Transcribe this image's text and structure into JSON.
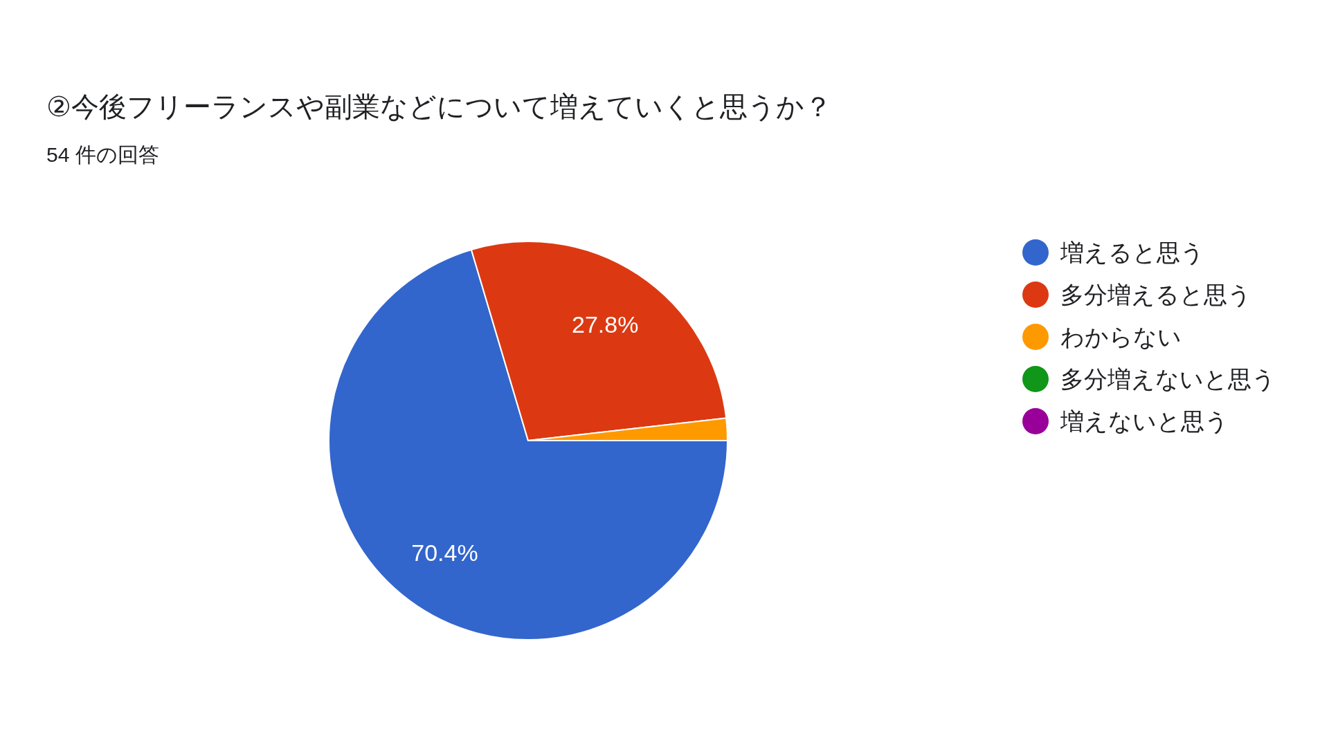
{
  "chart_data": {
    "type": "pie",
    "title": "②今後フリーランスや副業などについて増えていくと思うか？",
    "subtitle": "54 件の回答",
    "categories": [
      "増えると思う",
      "多分増えると思う",
      "わからない",
      "多分増えないと思う",
      "増えないと思う"
    ],
    "values": [
      70.4,
      27.8,
      1.8,
      0,
      0
    ],
    "colors": [
      "#3366cc",
      "#dc3912",
      "#ff9900",
      "#109618",
      "#990099"
    ],
    "value_labels": [
      "70.4%",
      "27.8%",
      null,
      null,
      null
    ],
    "legend": "right"
  }
}
